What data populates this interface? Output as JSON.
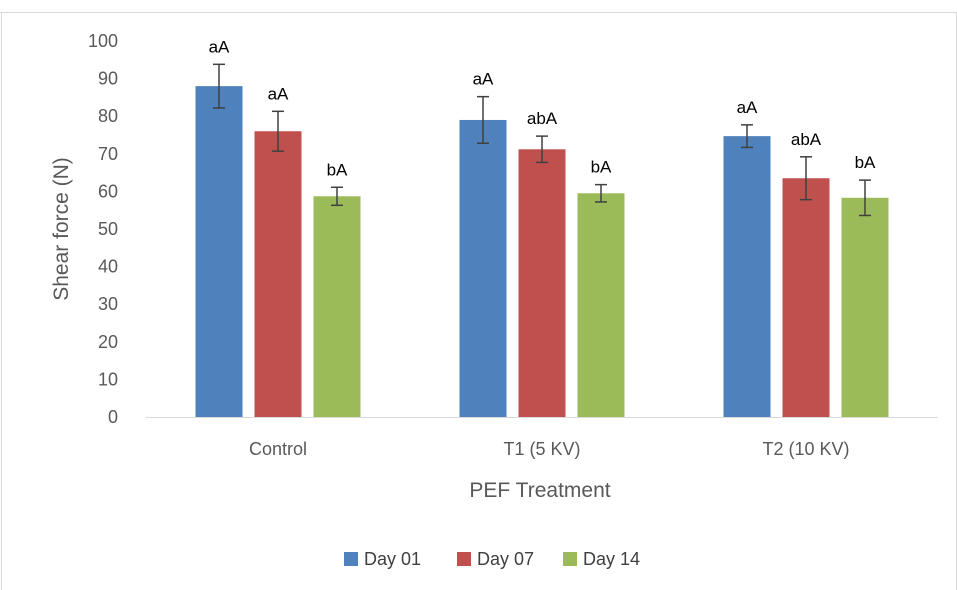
{
  "chart_data": {
    "type": "bar",
    "categories": [
      "Control",
      "T1 (5 KV)",
      "T2 (10 KV)"
    ],
    "series": [
      {
        "name": "Day 01",
        "color": "#4f81bd",
        "values": [
          88,
          79,
          74.7
        ],
        "errors": [
          5.8,
          6.2,
          3.0
        ],
        "labels": [
          "aA",
          "aA",
          "aA"
        ]
      },
      {
        "name": "Day 07",
        "color": "#c0504d",
        "values": [
          76,
          71.2,
          63.5
        ],
        "errors": [
          5.3,
          3.5,
          5.7
        ],
        "labels": [
          "aA",
          "abA",
          "abA"
        ]
      },
      {
        "name": "Day 14",
        "color": "#9bbb59",
        "values": [
          58.7,
          59.5,
          58.3
        ],
        "errors": [
          2.4,
          2.3,
          4.7
        ],
        "labels": [
          "bA",
          "bA",
          "bA"
        ]
      }
    ],
    "xlabel": "PEF Treatment",
    "ylabel": "Shear force (N)",
    "ylim": [
      0,
      100
    ],
    "yticks": [
      0,
      10,
      20,
      30,
      40,
      50,
      60,
      70,
      80,
      90,
      100
    ],
    "grid": false,
    "legend": "bottom"
  }
}
